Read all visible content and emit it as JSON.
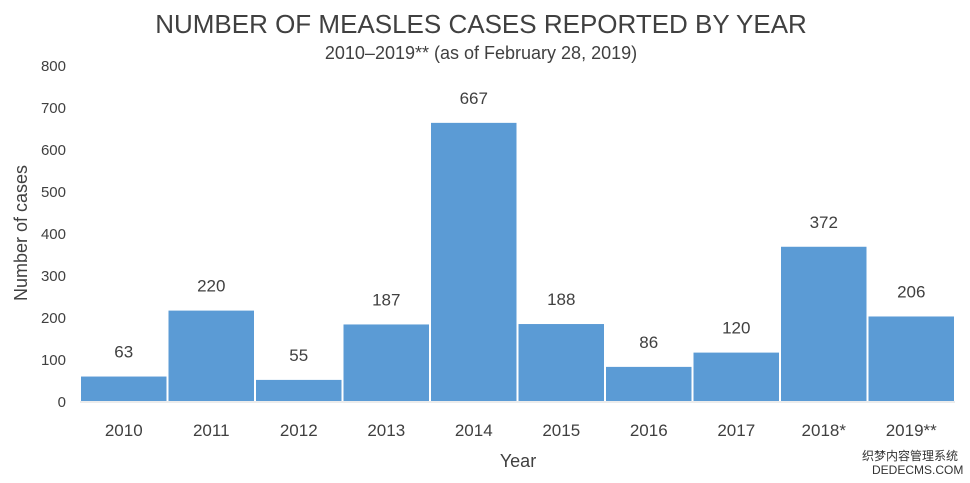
{
  "chart_data": {
    "type": "bar",
    "title": "NUMBER OF MEASLES CASES REPORTED BY YEAR",
    "subtitle": "2010–2019** (as of February 28, 2019)",
    "xlabel": "Year",
    "ylabel": "Number of cases",
    "categories": [
      "2010",
      "2011",
      "2012",
      "2013",
      "2014",
      "2015",
      "2016",
      "2017",
      "2018*",
      "2019**"
    ],
    "values": [
      63,
      220,
      55,
      187,
      667,
      188,
      86,
      120,
      372,
      206
    ],
    "ylim": [
      0,
      800
    ],
    "yticks": [
      0,
      100,
      200,
      300,
      400,
      500,
      600,
      700,
      800
    ],
    "grid": false,
    "bar_color": "#5b9bd5"
  },
  "watermark": {
    "line1": "织梦内容管理系统",
    "line2": "DEDECMS.COM"
  }
}
